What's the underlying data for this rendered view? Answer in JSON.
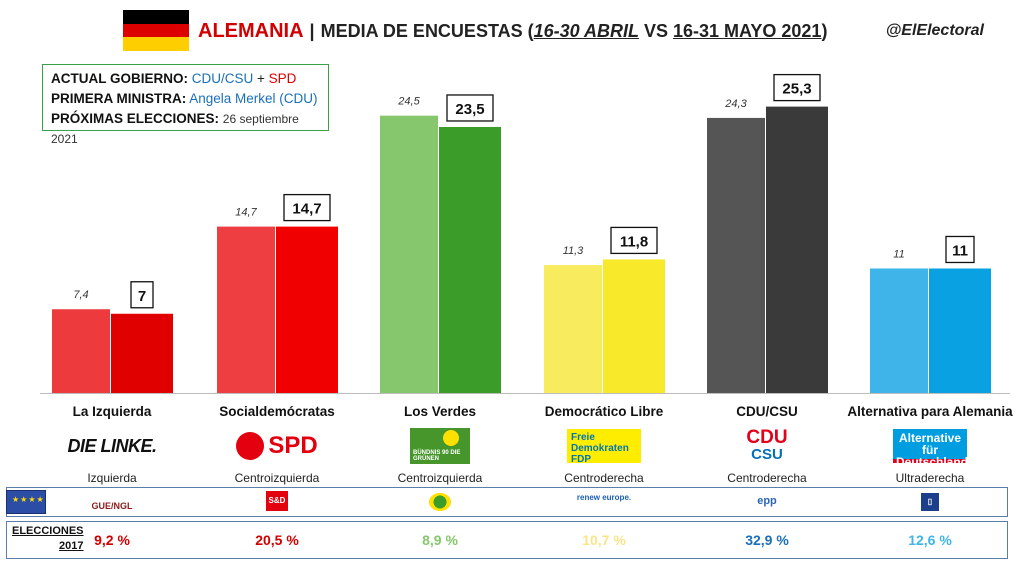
{
  "header": {
    "country": "ALEMANIA",
    "title_prefix": "MEDIA DE ENCUESTAS (",
    "title_period1": "16-30 ABRIL",
    "title_vs": " VS ",
    "title_period2": "16-31 MAYO 2021",
    "title_suffix": ")",
    "handle": "@ElElectoral"
  },
  "info": {
    "gov_label": "ACTUAL GOBIERNO:",
    "gov_part1": "CDU/CSU",
    "gov_plus": " + ",
    "gov_part2": "SPD",
    "pm_label": "PRIMERA MINISTRA:",
    "pm_value": "Angela Merkel (CDU)",
    "next_label": "PRÓXIMAS ELECCIONES:",
    "next_value": "26 septiembre 2021"
  },
  "colors": {
    "flag": [
      "#000000",
      "#dd0000",
      "#ffce00"
    ],
    "parties_prev": [
      "#ec3a3d",
      "#ef3e42",
      "#86c66d",
      "#f8ec5e",
      "#555555",
      "#3fb4e8"
    ],
    "parties_curr": [
      "#e00000",
      "#f00000",
      "#3c9c2a",
      "#f8e92b",
      "#3a3a3a",
      "#0aa1e2"
    ],
    "elections": [
      "#d00000",
      "#d00000",
      "#86c66d",
      "#f8e58a",
      "#1b6fb8",
      "#3fb4e8"
    ]
  },
  "chart_data": {
    "type": "bar",
    "categories": [
      "La Izquierda",
      "Socialdemócratas",
      "Los Verdes",
      "Democrático Libre",
      "CDU/CSU",
      "Alternativa para Alemania"
    ],
    "series": [
      {
        "name": "16-30 ABRIL",
        "values": [
          7.4,
          14.7,
          24.5,
          11.3,
          24.3,
          11
        ]
      },
      {
        "name": "16-31 MAYO 2021",
        "values": [
          7,
          14.7,
          23.5,
          11.8,
          25.3,
          11
        ]
      }
    ],
    "labels_prev": [
      "7,4",
      "14,7",
      "24,5",
      "11,3",
      "24,3",
      "11"
    ],
    "labels_curr": [
      "7",
      "14,7",
      "23,5",
      "11,8",
      "25,3",
      "11"
    ],
    "ylim": [
      0,
      27
    ]
  },
  "parties": [
    {
      "logo": "DIE LINKE.",
      "ideology": "Izquierda",
      "group": "GUE/NGL",
      "result2017": "9,2 %"
    },
    {
      "logo": "SPD",
      "ideology": "Centroizquierda",
      "group": "S&D",
      "result2017": "20,5 %"
    },
    {
      "logo": "BÜNDNIS 90 DIE GRÜNEN",
      "ideology": "Centroizquierda",
      "group": "Greens/EFA",
      "result2017": "8,9 %"
    },
    {
      "logo": "Freie Demokraten FDP",
      "ideology": "Centroderecha",
      "group": "renew europe.",
      "result2017": "10,7 %"
    },
    {
      "logo": "CDU CSU",
      "ideology": "Centroderecha",
      "group": "epp",
      "result2017": "32,9 %"
    },
    {
      "logo": "Alternative für Deutschland",
      "ideology": "Ultraderecha",
      "group": "ID",
      "result2017": "12,6 %"
    }
  ],
  "elections_label_line1": "ELECCIONES",
  "elections_label_line2": "2017"
}
